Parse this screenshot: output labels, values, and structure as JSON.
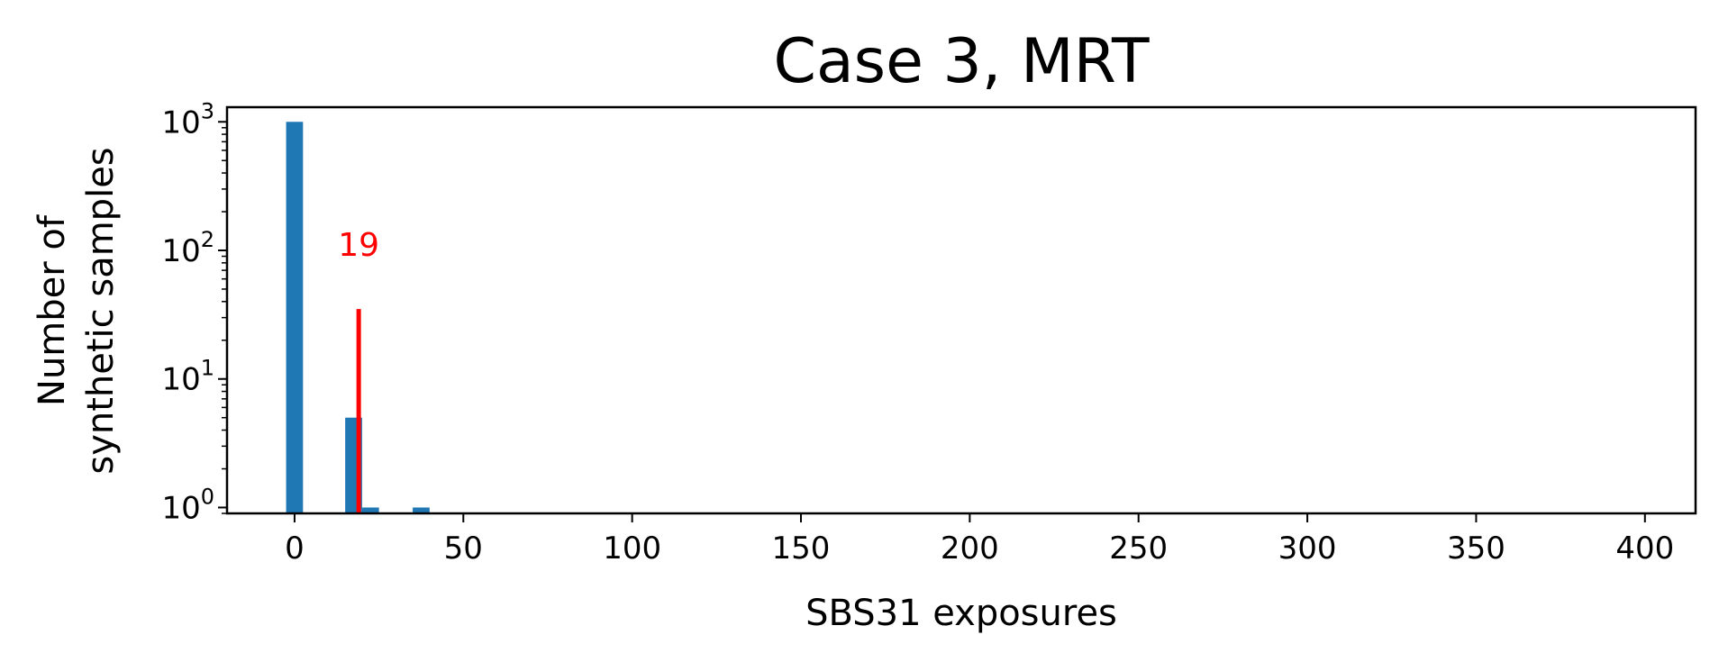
{
  "chart_data": {
    "type": "bar",
    "title": "Case 3, MRT",
    "xlabel": "SBS31 exposures",
    "ylabel_lines": [
      "Number of",
      "synthetic samples"
    ],
    "yscale": "log",
    "xlim": [
      -20,
      415
    ],
    "ylim": [
      0.9,
      1300
    ],
    "x_ticks": [
      0,
      50,
      100,
      150,
      200,
      250,
      300,
      350,
      400
    ],
    "y_ticks": [
      {
        "base": "10",
        "exp": "0",
        "value": 1
      },
      {
        "base": "10",
        "exp": "1",
        "value": 10
      },
      {
        "base": "10",
        "exp": "2",
        "value": 100
      },
      {
        "base": "10",
        "exp": "3",
        "value": 1000
      }
    ],
    "bar_width": 5,
    "bars": [
      {
        "x": 0,
        "value": 1000
      },
      {
        "x": 17.5,
        "value": 5
      },
      {
        "x": 22.5,
        "value": 1
      },
      {
        "x": 37.5,
        "value": 1
      }
    ],
    "bar_color": "#1f77b4",
    "marker": {
      "x": 19,
      "y_top": 35,
      "label": "19",
      "label_y": 110,
      "color": "#ff0000"
    }
  }
}
